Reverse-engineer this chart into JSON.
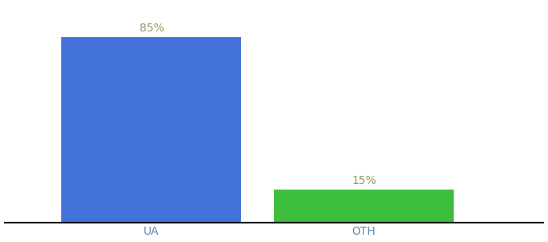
{
  "categories": [
    "UA",
    "OTH"
  ],
  "values": [
    85,
    15
  ],
  "bar_colors": [
    "#4472db",
    "#3dbf3d"
  ],
  "label_texts": [
    "85%",
    "15%"
  ],
  "label_color": "#999966",
  "bar_width": 0.55,
  "x_positions": [
    0.35,
    1.0
  ],
  "xlim": [
    -0.1,
    1.55
  ],
  "ylim": [
    0,
    100
  ],
  "background_color": "#ffffff",
  "tick_color": "#6688aa",
  "axis_line_color": "#111111",
  "label_fontsize": 10,
  "tick_fontsize": 10
}
